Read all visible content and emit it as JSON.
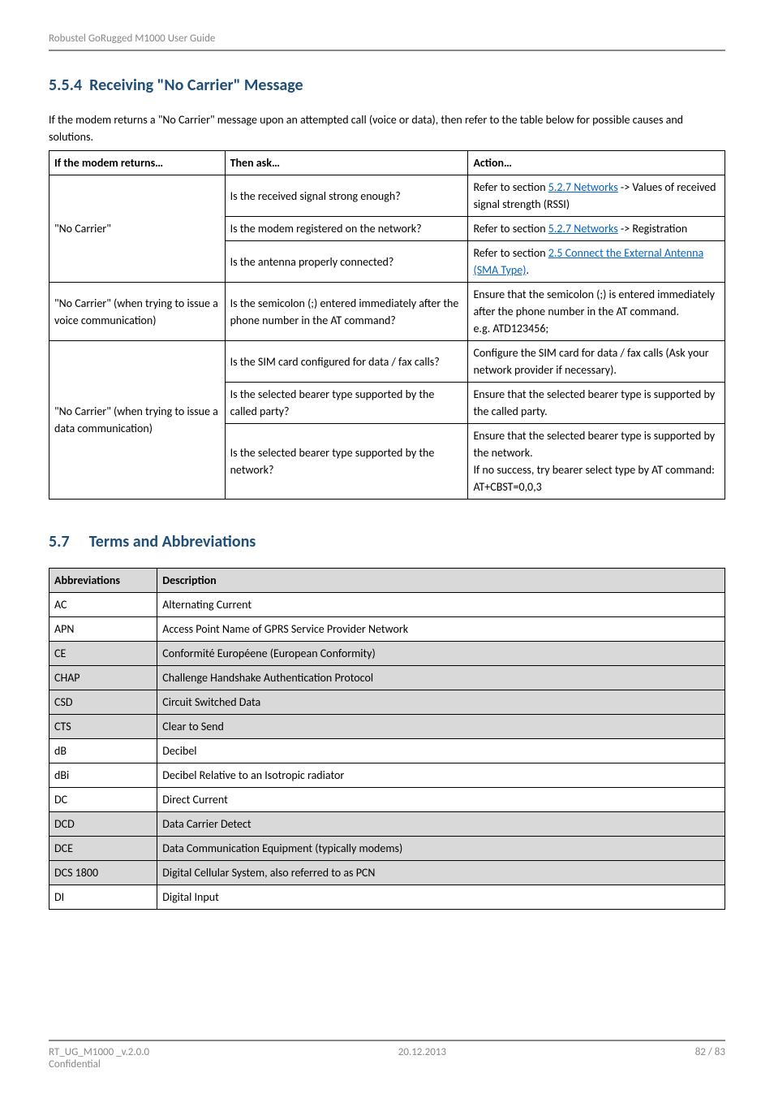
{
  "header": {
    "title": "Robustel GoRugged M1000 User Guide"
  },
  "section_554": {
    "number": "5.5.4",
    "title": "Receiving \"No Carrier\" Message",
    "intro": "If the modem returns a \"No Carrier\" message upon an attempted call (voice or data), then refer to the table below for possible causes and solutions.",
    "table": {
      "headers": {
        "if": "If the modem returns…",
        "then": "Then ask…",
        "action": "Action…"
      },
      "rows": [
        {
          "if": "\"No Carrier\"",
          "then_cells": [
            {
              "then": "Is the received signal strong enough?",
              "action_parts": [
                {
                  "text": "Refer to section "
                },
                {
                  "text": "5.2.7 Networks",
                  "link": true
                },
                {
                  "text": " -> Values of received signal strength (RSSI)"
                }
              ]
            },
            {
              "then": "Is the modem registered on the network?",
              "action_parts": [
                {
                  "text": "Refer to section "
                },
                {
                  "text": "5.2.7 Networks",
                  "link": true
                },
                {
                  "text": " -> Registration"
                }
              ]
            },
            {
              "then": "Is the antenna properly connected?",
              "action_parts": [
                {
                  "text": "Refer to section "
                },
                {
                  "text": "2.5 Connect the External Antenna (SMA Type)",
                  "link": true
                },
                {
                  "text": "."
                }
              ]
            }
          ]
        },
        {
          "if": "\"No Carrier\" (when trying to issue a voice communication)",
          "then_cells": [
            {
              "then": "Is the semicolon (;) entered immediately after the phone number in the AT command?",
              "action_parts": [
                {
                  "text": "Ensure that the semicolon (;) is entered immediately after the phone number in the AT command."
                },
                {
                  "br": true
                },
                {
                  "text": "e.g. ATD123456;"
                }
              ]
            }
          ]
        },
        {
          "if": "\"No Carrier\" (when trying to issue a data communication)",
          "then_cells": [
            {
              "then": "Is the SIM card configured for data / fax calls?",
              "action_parts": [
                {
                  "text": "Configure the SIM card for data / fax calls (Ask your network provider if necessary)."
                }
              ]
            },
            {
              "then": "Is the selected bearer type supported by the called party?",
              "action_parts": [
                {
                  "text": "Ensure that the selected bearer type is supported by the called party."
                }
              ]
            },
            {
              "then": "Is the selected bearer type supported by the network?",
              "action_parts": [
                {
                  "text": "Ensure that the selected bearer type is supported by the network."
                },
                {
                  "br": true
                },
                {
                  "text": "If no success, try bearer select type by AT command: AT+CBST=0,0,3"
                }
              ]
            }
          ]
        }
      ]
    }
  },
  "section_57": {
    "number": "5.7",
    "title": "Terms and Abbreviations",
    "table": {
      "headers": {
        "abbr": "Abbreviations",
        "desc": "Description"
      },
      "rows": [
        {
          "abbr": "AC",
          "desc": "Alternating Current"
        },
        {
          "abbr": "APN",
          "desc": "Access Point Name of GPRS Service Provider Network"
        },
        {
          "abbr": "CE",
          "desc": "Conformité Européene (European Conformity)"
        },
        {
          "abbr": "CHAP",
          "desc": "Challenge Handshake Authentication Protocol"
        },
        {
          "abbr": "CSD",
          "desc": "Circuit Switched Data"
        },
        {
          "abbr": "CTS",
          "desc": "Clear to Send"
        },
        {
          "abbr": "dB",
          "desc": "Decibel"
        },
        {
          "abbr": "dBi",
          "desc": "Decibel Relative to an Isotropic radiator"
        },
        {
          "abbr": "DC",
          "desc": "Direct Current"
        },
        {
          "abbr": "DCD",
          "desc": "Data Carrier Detect"
        },
        {
          "abbr": "DCE",
          "desc": "Data Communication Equipment (typically modems)"
        },
        {
          "abbr": "DCS 1800",
          "desc": "Digital Cellular System, also referred to as PCN"
        },
        {
          "abbr": "DI",
          "desc": "Digital Input"
        }
      ]
    },
    "shaded_abbrs": [
      "CE",
      "CHAP",
      "CSD",
      "CTS",
      "DCD",
      "DCE",
      "DCS 1800"
    ]
  },
  "footer": {
    "left1": "RT_UG_M1000 _v.2.0.0",
    "left2": "Confidential",
    "center": "20.12.2013",
    "right": "82 / 83"
  },
  "colors": {
    "heading": "#1f4e79",
    "link": "#0563c1",
    "header_grey": "#888888",
    "shaded_bg": "#d9d9d9"
  }
}
